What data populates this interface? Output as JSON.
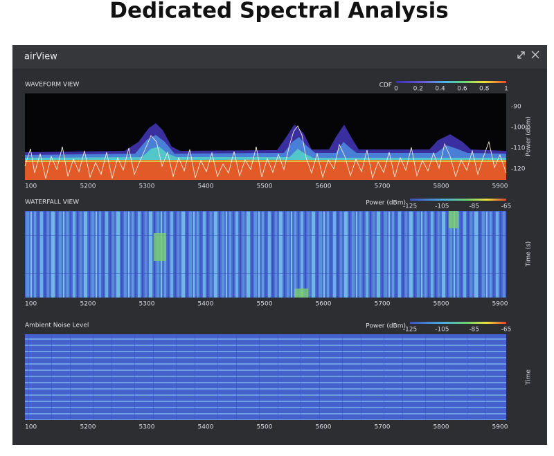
{
  "header": {
    "title": "Dedicated Spectral Analysis"
  },
  "window": {
    "title": "airView"
  },
  "waveform": {
    "title": "WAVEFORM VIEW",
    "legend_title": "CDF",
    "legend_ticks": [
      0,
      0.2,
      0.4,
      0.6,
      0.8,
      1
    ],
    "y_label": "Power (dBm)",
    "y_ticks": [
      -90,
      -100,
      -110,
      -120
    ],
    "x_ticks": [
      100,
      5200,
      5300,
      5400,
      5500,
      5600,
      5700,
      5800,
      5900
    ]
  },
  "waterfall": {
    "title": "WATERFALL VIEW",
    "legend_title": "Power (dBm)",
    "legend_ticks": [
      -125,
      -105,
      -85,
      -65
    ],
    "y_label": "Time (s)",
    "x_ticks": [
      100,
      5200,
      5300,
      5400,
      5500,
      5600,
      5700,
      5800,
      5900
    ]
  },
  "ambient": {
    "title": "Ambient Noise Level",
    "legend_title": "Power (dBm)",
    "legend_ticks": [
      -125,
      -105,
      -85,
      -65
    ],
    "y_label": "Time",
    "x_ticks": [
      100,
      5200,
      5300,
      5400,
      5500,
      5600,
      5700,
      5800,
      5900
    ]
  }
}
